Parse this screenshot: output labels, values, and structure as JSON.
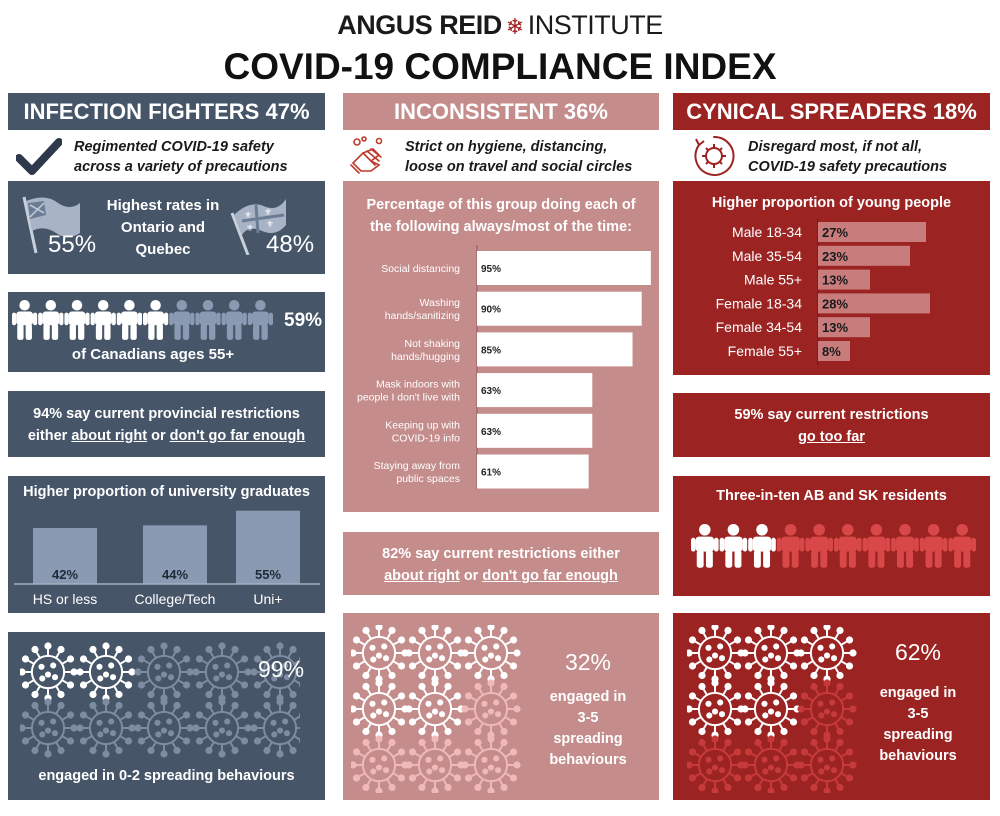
{
  "header": {
    "brand_part1": "ANGUS REID",
    "brand_part2": "INSTITUTE",
    "title": "COVID-19 COMPLIANCE INDEX"
  },
  "colors": {
    "slate": "#465568",
    "slate_light": "#8a9ab2",
    "pink": "#c58c8c",
    "pink_light": "#efb9b9",
    "red": "#9b2423",
    "red_light": "#c05a5a",
    "red_bar": "#c97c7c"
  },
  "columns": {
    "fighters": {
      "heading": "INFECTION FIGHTERS 47%",
      "sub1": "Regimented COVID-19 safety",
      "sub2": "across a variety of precautions",
      "icon": "checkmark-icon",
      "region_title1": "Highest rates in",
      "region_title2": "Ontario and",
      "region_title3": "Quebec",
      "ontario_pct": "55%",
      "quebec_pct": "48%",
      "people_pct": "59%",
      "people_label": "of Canadians ages 55+",
      "people_filled_fraction": 0.6,
      "restr_line1": "94% say current provincial restrictions",
      "restr_pre": "either",
      "restr_u1": "about right",
      "restr_mid": "or",
      "restr_u2": "don't go far enough",
      "edu_title": "Higher proportion of university graduates",
      "virus_pct": "99%",
      "virus_label": "engaged in 0-2 spreading behaviours",
      "virus_filled_fraction": 0.2
    },
    "inconsistent": {
      "heading": "INCONSISTENT 36%",
      "sub1": "Strict on hygiene, distancing,",
      "sub2": "loose on travel and social circles",
      "icon": "handwashing-icon",
      "chart_title1": "Percentage of this group doing each of",
      "chart_title2": "the following always/most of the time:",
      "restr_line1": "82% say current restrictions either",
      "restr_u1": "about right",
      "restr_mid": "or",
      "restr_u2": "don't go far enough",
      "virus_pct": "32%",
      "virus_label1": "engaged in",
      "virus_label2": "3-5",
      "virus_label3": "spreading",
      "virus_label4": "behaviours",
      "virus_filled_fraction": 0.556
    },
    "spreaders": {
      "heading": "CYNICAL SPREADERS 18%",
      "sub1": "Disregard most, if not all,",
      "sub2": "COVID-19 safety precautions",
      "icon": "virus-icon",
      "age_title": "Higher proportion of young people",
      "restr_line1": "59% say current restrictions",
      "restr_u1": "go too far",
      "region_title": "Three-in-ten AB and SK residents",
      "people_filled_fraction": 0.3,
      "virus_pct": "62%",
      "virus_label1": "engaged in",
      "virus_label2": "3-5",
      "virus_label3": "spreading",
      "virus_label4": "behaviours",
      "virus_filled_fraction": 0.556
    }
  },
  "chart_data": [
    {
      "type": "bar",
      "title": "Higher proportion of university graduates",
      "categories": [
        "HS or less",
        "College/Tech",
        "Uni+"
      ],
      "values": [
        42,
        44,
        55
      ],
      "value_labels": [
        "42%",
        "44%",
        "55%"
      ]
    },
    {
      "type": "bar",
      "orientation": "horizontal",
      "title": "Percentage of this group doing each of the following always/most of the time:",
      "categories": [
        [
          "Social distancing"
        ],
        [
          "Washing",
          "hands/sanitizing"
        ],
        [
          "Not shaking",
          "hands/hugging"
        ],
        [
          "Mask indoors with",
          "people I don't live with"
        ],
        [
          "Keeping up with",
          "COVID-19 info"
        ],
        [
          "Staying away from",
          "public spaces"
        ]
      ],
      "values": [
        95,
        90,
        85,
        63,
        63,
        61
      ],
      "value_labels": [
        "95%",
        "90%",
        "85%",
        "63%",
        "63%",
        "61%"
      ],
      "xlim": [
        0,
        100
      ]
    },
    {
      "type": "bar",
      "orientation": "horizontal",
      "title": "Higher proportion of young people",
      "categories": [
        "Male 18-34",
        "Male 35-54",
        "Male 55+",
        "Female 18-34",
        "Female 34-54",
        "Female 55+"
      ],
      "values": [
        27,
        23,
        13,
        28,
        13,
        8
      ],
      "value_labels": [
        "27%",
        "23%",
        "13%",
        "28%",
        "13%",
        "8%"
      ]
    }
  ]
}
